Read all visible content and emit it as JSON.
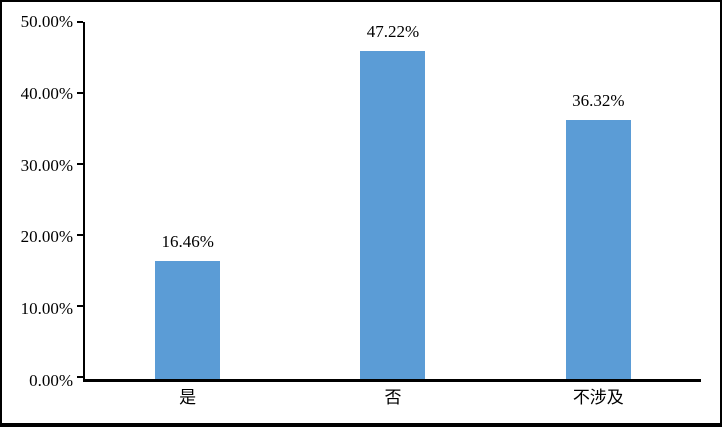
{
  "chart_data": {
    "type": "bar",
    "categories": [
      "是",
      "否",
      "不涉及"
    ],
    "values": [
      16.46,
      47.22,
      36.32
    ],
    "value_labels": [
      "16.46%",
      "47.22%",
      "36.32%"
    ],
    "yticks_top_to_bottom": [
      "50.00%",
      "40.00%",
      "30.00%",
      "20.00%",
      "10.00%",
      "0.00%"
    ],
    "ylim": [
      0,
      50
    ],
    "title": "",
    "xlabel": "",
    "ylabel": "",
    "grid": false,
    "legend_position": "none",
    "bar_color": "#5b9cd6",
    "axis_color": "#000000",
    "background_color": "#ffffff"
  }
}
